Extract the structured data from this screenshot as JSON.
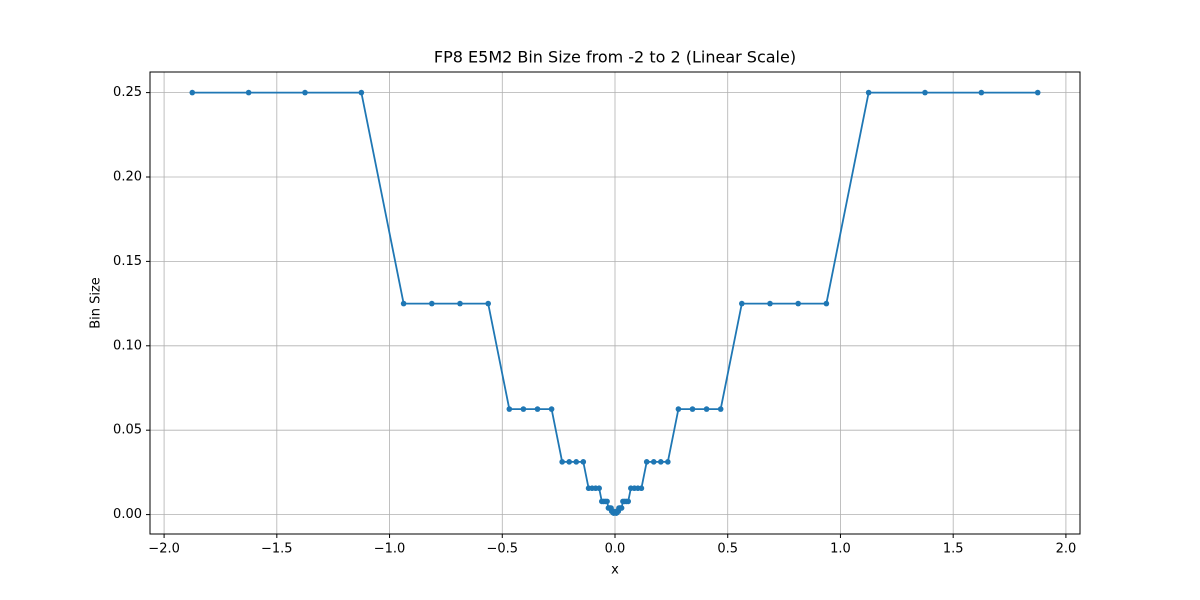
{
  "chart_data": {
    "type": "line",
    "title": "FP8 E5M2 Bin Size from -2 to 2 (Linear Scale)",
    "x_label": "x",
    "y_label": "Bin Size",
    "x": [
      -1.875,
      -1.625,
      -1.375,
      -1.125,
      -0.9375,
      -0.8125,
      -0.6875,
      -0.5625,
      -0.46875,
      -0.40625,
      -0.34375,
      -0.28125,
      -0.234375,
      -0.203125,
      -0.171875,
      -0.140625,
      -0.1171875,
      -0.1015625,
      -0.0859375,
      -0.0703125,
      -0.05859375,
      -0.05078125,
      -0.04296875,
      -0.03515625,
      -0.029296875,
      -0.025390625,
      -0.021484375,
      -0.017578125,
      -0.0146484375,
      -0.0126953125,
      -0.0107421875,
      -0.0087890625,
      -0.00732421875,
      -0.00634765625,
      -0.00537109375,
      -0.00439453125,
      0.00439453125,
      0.00537109375,
      0.00634765625,
      0.00732421875,
      0.0087890625,
      0.0107421875,
      0.0126953125,
      0.0146484375,
      0.017578125,
      0.021484375,
      0.025390625,
      0.029296875,
      0.03515625,
      0.04296875,
      0.05078125,
      0.05859375,
      0.0703125,
      0.0859375,
      0.1015625,
      0.1171875,
      0.140625,
      0.171875,
      0.203125,
      0.234375,
      0.28125,
      0.34375,
      0.40625,
      0.46875,
      0.5625,
      0.6875,
      0.8125,
      0.9375,
      1.125,
      1.375,
      1.625,
      1.875
    ],
    "series": [
      {
        "color": "#1f77b4",
        "values": [
          0.25,
          0.25,
          0.25,
          0.25,
          0.125,
          0.125,
          0.125,
          0.125,
          0.0625,
          0.0625,
          0.0625,
          0.0625,
          0.03125,
          0.03125,
          0.03125,
          0.03125,
          0.015625,
          0.015625,
          0.015625,
          0.015625,
          0.0078125,
          0.0078125,
          0.0078125,
          0.0078125,
          0.00390625,
          0.00390625,
          0.00390625,
          0.00390625,
          0.001953125,
          0.001953125,
          0.001953125,
          0.001953125,
          0.0009765625,
          0.0009765625,
          0.0009765625,
          0.0009765625,
          0.0009765625,
          0.0009765625,
          0.0009765625,
          0.0009765625,
          0.001953125,
          0.001953125,
          0.001953125,
          0.001953125,
          0.00390625,
          0.00390625,
          0.00390625,
          0.00390625,
          0.0078125,
          0.0078125,
          0.0078125,
          0.0078125,
          0.015625,
          0.015625,
          0.015625,
          0.015625,
          0.03125,
          0.03125,
          0.03125,
          0.03125,
          0.0625,
          0.0625,
          0.0625,
          0.0625,
          0.125,
          0.125,
          0.125,
          0.125,
          0.25,
          0.25,
          0.25,
          0.25
        ]
      }
    ],
    "xlim": [
      -2.0625,
      2.0625
    ],
    "xticks": [
      {
        "value": -2.0,
        "label": "−2.0"
      },
      {
        "value": -1.5,
        "label": "−1.5"
      },
      {
        "value": -1.0,
        "label": "−1.0"
      },
      {
        "value": -0.5,
        "label": "−0.5"
      },
      {
        "value": 0,
        "label": "0.0"
      },
      0.5,
      {
        "value": 1,
        "label": "1.0"
      },
      1.5,
      {
        "value": 2,
        "label": "2.0"
      }
    ],
    "ylim": [
      -0.0115,
      0.2622
    ],
    "yticks": [
      {
        "value": 0,
        "label": "0.00"
      },
      {
        "value": 0.05,
        "label": "0.05"
      },
      {
        "value": 0.1,
        "label": "0.10"
      },
      {
        "value": 0.15,
        "label": "0.15"
      },
      {
        "value": 0.2,
        "label": "0.20"
      },
      {
        "value": 0.25,
        "label": "0.25"
      }
    ],
    "grid": true,
    "markers": true
  }
}
